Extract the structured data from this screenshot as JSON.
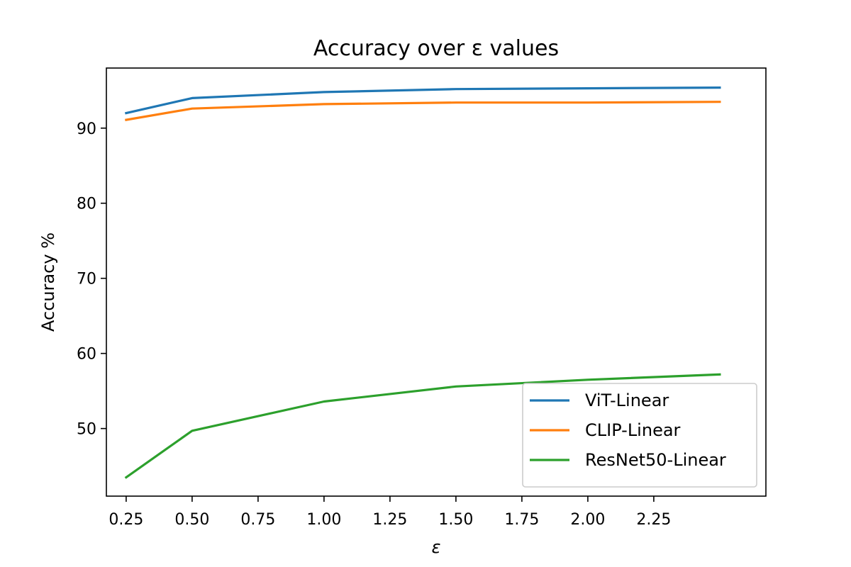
{
  "chart_data": {
    "type": "line",
    "title": "Accuracy over ε values",
    "xlabel": "ε",
    "ylabel": "Accuracy %",
    "xlim": [
      0.175,
      2.675
    ],
    "ylim": [
      41.0,
      98.0
    ],
    "xticks": [
      0.25,
      0.5,
      0.75,
      1.0,
      1.25,
      1.5,
      1.75,
      2.0,
      2.25
    ],
    "xtick_labels": [
      "0.25",
      "0.50",
      "0.75",
      "1.00",
      "1.25",
      "1.50",
      "1.75",
      "2.00",
      "2.25"
    ],
    "yticks": [
      50,
      60,
      70,
      80,
      90
    ],
    "ytick_labels": [
      "50",
      "60",
      "70",
      "80",
      "90"
    ],
    "x": [
      0.25,
      0.5,
      1.0,
      1.5,
      2.0,
      2.5
    ],
    "series": [
      {
        "name": "ViT-Linear",
        "color": "#1f77b4",
        "values": [
          92.0,
          94.0,
          94.8,
          95.2,
          95.3,
          95.4
        ]
      },
      {
        "name": "CLIP-Linear",
        "color": "#ff7f0e",
        "values": [
          91.1,
          92.6,
          93.2,
          93.4,
          93.4,
          93.5
        ]
      },
      {
        "name": "ResNet50-Linear",
        "color": "#2ca02c",
        "values": [
          43.5,
          49.7,
          53.6,
          55.6,
          56.5,
          57.2
        ]
      }
    ],
    "legend": {
      "position": "lower-right"
    },
    "grid": false
  }
}
